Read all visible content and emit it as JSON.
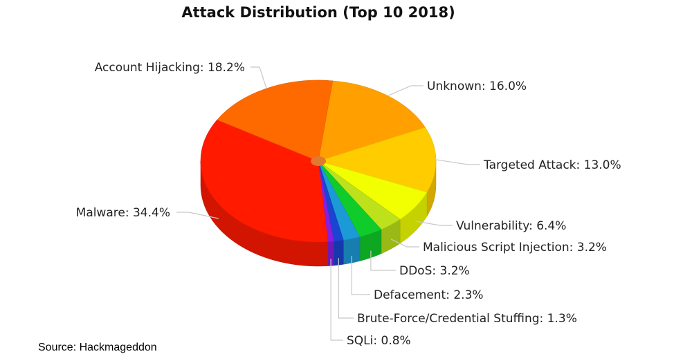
{
  "chart_data": {
    "type": "pie",
    "title": "Attack Distribution (Top 10 2018)",
    "slices": [
      {
        "label": "Unknown",
        "value": 16.0,
        "color": "#ffa000",
        "text": "Unknown: 16.0%"
      },
      {
        "label": "Targeted Attack",
        "value": 13.0,
        "color": "#ffcc00",
        "text": "Targeted Attack: 13.0%"
      },
      {
        "label": "Vulnerability",
        "value": 6.4,
        "color": "#f2ff00",
        "text": "Vulnerability: 6.4%"
      },
      {
        "label": "Malicious Script Injection",
        "value": 3.2,
        "color": "#bde21b",
        "text": "Malicious Script Injection: 3.2%"
      },
      {
        "label": "DDoS",
        "value": 3.2,
        "color": "#10cc2a",
        "text": "DDoS: 3.2%"
      },
      {
        "label": "Defacement",
        "value": 2.3,
        "color": "#1c9ad6",
        "text": "Defacement: 2.3%"
      },
      {
        "label": "Brute-Force/Credential Stuffing",
        "value": 1.3,
        "color": "#1945d2",
        "text": "Brute-Force/Credential Stuffing: 1.3%"
      },
      {
        "label": "SQLi",
        "value": 0.8,
        "color": "#8a1ee0",
        "text": "SQLi: 0.8%"
      },
      {
        "label": "Malware",
        "value": 34.4,
        "color": "#ff1a00",
        "text": "Malware: 34.4%"
      },
      {
        "label": "Account Hijacking",
        "value": 18.2,
        "color": "#ff6a00",
        "text": "Account Hijacking: 18.2%"
      }
    ],
    "legend": "none",
    "style": "3d-pie"
  },
  "source_note": "Source: Hackmageddon"
}
